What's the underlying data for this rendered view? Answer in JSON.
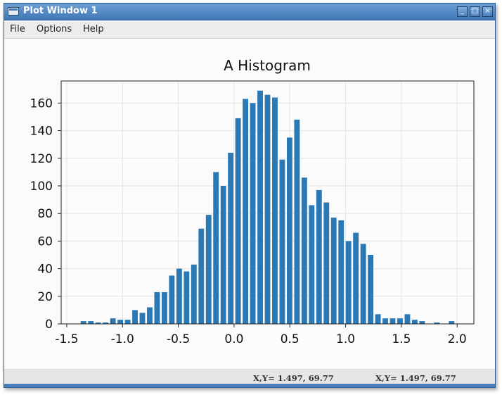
{
  "window": {
    "title": "Plot Window 1",
    "buttons": {
      "minimize": "_",
      "maximize": "□",
      "close": "×"
    }
  },
  "menu": [
    {
      "label": "File"
    },
    {
      "label": "Options"
    },
    {
      "label": "Help"
    }
  ],
  "status": {
    "left": "X,Y= 1.497, 69.77",
    "right": "X,Y= 1.497, 69.77"
  },
  "colors": {
    "bar": "#2a78b4",
    "titlebar": "#4a80bd"
  },
  "chart_data": {
    "type": "bar",
    "title": "A Histogram",
    "xlabel": "",
    "ylabel": "",
    "xlim": [
      -1.55,
      2.15
    ],
    "ylim": [
      0,
      176
    ],
    "xticks": [
      -1.5,
      -1.0,
      -0.5,
      0.0,
      0.5,
      1.0,
      1.5,
      2.0
    ],
    "xtick_labels": [
      "-1.5",
      "-1.0",
      "-0.5",
      "0.0",
      "0.5",
      "1.0",
      "1.5",
      "2.0"
    ],
    "yticks": [
      0,
      20,
      40,
      60,
      80,
      100,
      120,
      140,
      160
    ],
    "ytick_labels": [
      "0",
      "20",
      "40",
      "60",
      "80",
      "100",
      "120",
      "140",
      "160"
    ],
    "grid": true,
    "bin_width": 0.066,
    "bar_fraction": 0.75,
    "x": [
      -1.35,
      -1.284,
      -1.218,
      -1.152,
      -1.086,
      -1.02,
      -0.954,
      -0.888,
      -0.822,
      -0.756,
      -0.69,
      -0.624,
      -0.558,
      -0.492,
      -0.426,
      -0.36,
      -0.294,
      -0.228,
      -0.162,
      -0.096,
      -0.03,
      0.036,
      0.102,
      0.168,
      0.234,
      0.3,
      0.366,
      0.432,
      0.498,
      0.564,
      0.63,
      0.696,
      0.762,
      0.828,
      0.894,
      0.96,
      1.026,
      1.092,
      1.158,
      1.224,
      1.29,
      1.356,
      1.422,
      1.488,
      1.554,
      1.62,
      1.686,
      1.752,
      1.818,
      1.884,
      1.95
    ],
    "values": [
      2,
      2,
      1,
      1,
      4,
      3,
      3,
      10,
      8,
      12,
      23,
      23,
      35,
      40,
      38,
      43,
      69,
      79,
      110,
      100,
      124,
      149,
      163,
      160,
      169,
      166,
      164,
      119,
      135,
      148,
      106,
      86,
      97,
      88,
      77,
      75,
      60,
      66,
      58,
      50,
      7,
      4,
      4,
      4,
      7,
      3,
      2,
      0,
      1,
      0,
      2
    ]
  }
}
